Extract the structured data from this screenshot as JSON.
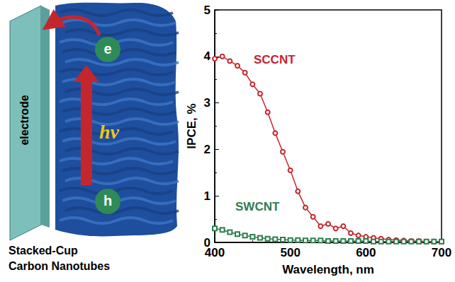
{
  "diagram": {
    "electrode_label": "electrode",
    "electron_label": "e",
    "hole_label": "h",
    "photon_label": "hν",
    "caption": [
      "Stacked-Cup",
      "Carbon Nanotubes"
    ]
  },
  "chart_data": {
    "type": "line",
    "y_label": "IPCE, %",
    "x_label": "Wavelength, nm",
    "x": [
      400,
      410,
      420,
      430,
      440,
      450,
      460,
      470,
      480,
      490,
      500,
      510,
      520,
      530,
      540,
      550,
      560,
      570,
      580,
      590,
      600,
      610,
      620,
      630,
      640,
      650,
      660,
      670,
      680,
      690,
      700
    ],
    "series": [
      {
        "name": "SCCNT",
        "color": "#c4262e",
        "marker": "circle",
        "values": [
          3.95,
          4.0,
          3.9,
          3.8,
          3.65,
          3.4,
          3.2,
          2.8,
          2.35,
          1.95,
          1.55,
          1.1,
          0.75,
          0.55,
          0.35,
          0.4,
          0.3,
          0.35,
          0.2,
          0.15,
          0.12,
          0.1,
          0.08,
          0.06,
          0.05,
          0.04,
          0.03,
          0.03,
          0.02,
          0.02,
          0.02
        ]
      },
      {
        "name": "SWCNT",
        "color": "#2e7d4f",
        "marker": "square",
        "values": [
          0.3,
          0.27,
          0.22,
          0.18,
          0.15,
          0.12,
          0.1,
          0.08,
          0.07,
          0.06,
          0.05,
          0.05,
          0.04,
          0.04,
          0.04,
          0.03,
          0.03,
          0.03,
          0.03,
          0.03,
          0.03,
          0.02,
          0.02,
          0.02,
          0.02,
          0.02,
          0.02,
          0.02,
          0.02,
          0.02,
          0.02
        ]
      }
    ],
    "xlim": [
      400,
      700
    ],
    "xticks": [
      400,
      500,
      600,
      700
    ],
    "ylim": [
      0,
      5
    ],
    "yticks": [
      0,
      1,
      2,
      3,
      4,
      5
    ],
    "grid": false
  }
}
